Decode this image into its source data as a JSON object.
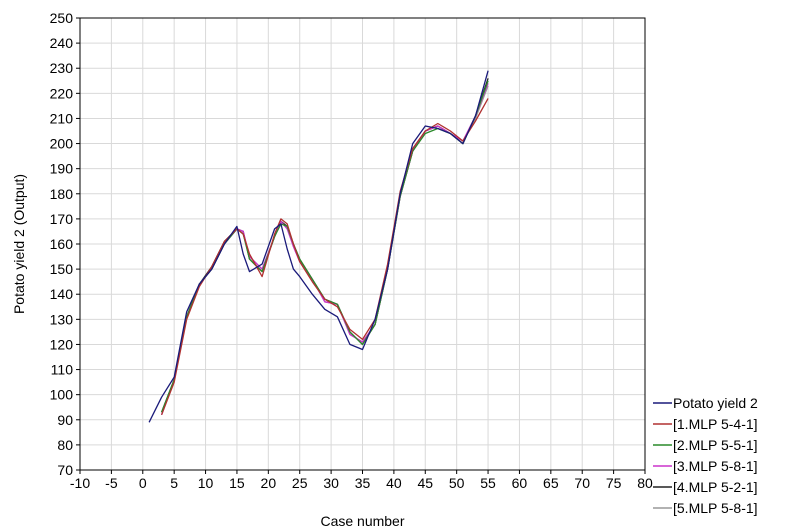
{
  "chart_data": {
    "type": "line",
    "xlabel": "Case number",
    "ylabel": "Potato yield 2 (Output)",
    "xlim": [
      -10,
      80
    ],
    "ylim": [
      70,
      250
    ],
    "xticks": [
      -10,
      -5,
      0,
      5,
      10,
      15,
      20,
      25,
      30,
      35,
      40,
      45,
      50,
      55,
      60,
      65,
      70,
      75,
      80
    ],
    "yticks": [
      70,
      80,
      90,
      100,
      110,
      120,
      130,
      140,
      150,
      160,
      170,
      180,
      190,
      200,
      210,
      220,
      230,
      240,
      250
    ],
    "grid": true,
    "legend_position": "bottom-right",
    "x": [
      1,
      3,
      5,
      7,
      9,
      11,
      13,
      15,
      16,
      17,
      19,
      21,
      22,
      23,
      24,
      25,
      27,
      29,
      31,
      33,
      35,
      37,
      39,
      41,
      43,
      45,
      47,
      49,
      51,
      53,
      55
    ],
    "series": [
      {
        "name": "Potato yield 2",
        "color": "#1a1a7a",
        "values": [
          89,
          99,
          107,
          133,
          144,
          150,
          160,
          167,
          156,
          149,
          152,
          166,
          168,
          158,
          150,
          147,
          140,
          134,
          131,
          120,
          118,
          130,
          150,
          180,
          200,
          207,
          206,
          204,
          200,
          211,
          229
        ]
      },
      {
        "name": "[1.MLP 5-4-1]",
        "color": "#b03030",
        "values": [
          null,
          92,
          105,
          130,
          143,
          151,
          161,
          166,
          164,
          156,
          147,
          164,
          170,
          168,
          160,
          153,
          145,
          138,
          135,
          126,
          122,
          130,
          152,
          181,
          198,
          205,
          208,
          205,
          201,
          209,
          218
        ]
      },
      {
        "name": "[2.MLP 5-5-1]",
        "color": "#2a8a2a",
        "values": [
          null,
          93,
          106,
          131,
          144,
          150,
          160,
          166,
          164,
          154,
          149,
          163,
          168,
          167,
          160,
          154,
          146,
          138,
          136,
          125,
          120,
          128,
          150,
          179,
          197,
          204,
          206,
          204,
          200,
          211,
          225
        ]
      },
      {
        "name": "[3.MLP 5-8-1]",
        "color": "#cc33cc",
        "values": [
          null,
          92,
          106,
          131,
          144,
          150,
          160,
          166,
          165,
          155,
          150,
          163,
          169,
          166,
          159,
          153,
          146,
          137,
          136,
          124,
          121,
          128,
          150,
          179,
          197,
          205,
          207,
          204,
          201,
          211,
          224
        ]
      },
      {
        "name": "[4.MLP 5-2-1]",
        "color": "#222222",
        "values": [
          null,
          93,
          106,
          131,
          144,
          151,
          161,
          166,
          165,
          154,
          149,
          163,
          169,
          167,
          160,
          154,
          146,
          138,
          136,
          125,
          120,
          128,
          150,
          179,
          197,
          205,
          207,
          204,
          200,
          211,
          226
        ]
      },
      {
        "name": "[5.MLP 5-8-1]",
        "color": "#999999",
        "values": [
          null,
          92,
          106,
          131,
          144,
          150,
          161,
          166,
          164,
          155,
          150,
          163,
          169,
          167,
          159,
          153,
          146,
          137,
          136,
          124,
          121,
          128,
          151,
          180,
          198,
          205,
          207,
          204,
          201,
          210,
          223
        ]
      }
    ]
  }
}
